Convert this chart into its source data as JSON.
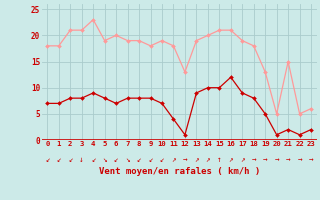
{
  "hours": [
    0,
    1,
    2,
    3,
    4,
    5,
    6,
    7,
    8,
    9,
    10,
    11,
    12,
    13,
    14,
    15,
    16,
    17,
    18,
    19,
    20,
    21,
    22,
    23
  ],
  "wind_avg": [
    7,
    7,
    8,
    8,
    9,
    8,
    7,
    8,
    8,
    8,
    7,
    4,
    1,
    9,
    10,
    10,
    12,
    9,
    8,
    5,
    1,
    2,
    1,
    2
  ],
  "wind_gust": [
    18,
    18,
    21,
    21,
    23,
    19,
    20,
    19,
    19,
    18,
    19,
    18,
    13,
    19,
    20,
    21,
    21,
    19,
    18,
    13,
    5,
    15,
    5,
    6
  ],
  "bg_color": "#cceae8",
  "grid_color": "#aacccc",
  "avg_color": "#cc0000",
  "gust_color": "#ff9999",
  "axis_label_color": "#cc0000",
  "xlabel": "Vent moyen/en rafales ( km/h )",
  "ylim": [
    0,
    26
  ],
  "yticks": [
    0,
    5,
    10,
    15,
    20,
    25
  ],
  "arrow_chars": [
    "↙",
    "↙",
    "↙",
    "↓",
    "↙",
    "↘",
    "↙",
    "↘",
    "↙",
    "↙",
    "↙",
    "↗",
    "→",
    "↗",
    "↗",
    "↑",
    "↗",
    "↗",
    "→",
    "→",
    "→",
    "→",
    "→",
    "→"
  ]
}
